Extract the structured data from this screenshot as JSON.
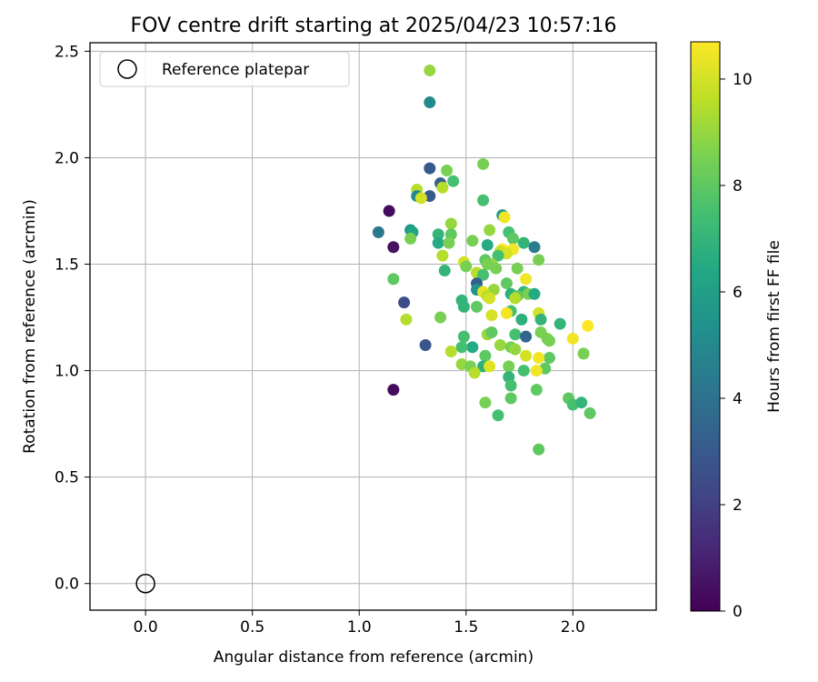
{
  "chart_data": {
    "type": "scatter",
    "title": "FOV centre drift starting at 2025/04/23 10:57:16",
    "xlabel": "Angular distance from reference (arcmin)",
    "ylabel": "Rotation from reference (arcmin)",
    "xlim": [
      -0.26,
      2.39
    ],
    "ylim": [
      -0.125,
      2.54
    ],
    "x_ticks": [
      0.0,
      0.5,
      1.0,
      1.5,
      2.0
    ],
    "x_tick_labels": [
      "0.0",
      "0.5",
      "1.0",
      "1.5",
      "2.0"
    ],
    "y_ticks": [
      0.0,
      0.5,
      1.0,
      1.5,
      2.0,
      2.5
    ],
    "y_tick_labels": [
      "0.0",
      "0.5",
      "1.0",
      "1.5",
      "2.0",
      "2.5"
    ],
    "grid": true,
    "legend": {
      "position": "top-left",
      "entries": [
        "Reference platepar"
      ]
    },
    "reference_point": {
      "x": 0.0,
      "y": 0.0,
      "label": "Reference platepar"
    },
    "colorbar": {
      "label": "Hours from first FF file",
      "colormap": "viridis",
      "range": [
        0,
        10.7
      ],
      "ticks": [
        0,
        2,
        4,
        6,
        8,
        10
      ],
      "tick_labels": [
        "0",
        "2",
        "4",
        "6",
        "8",
        "10"
      ]
    },
    "points": [
      {
        "x": 1.33,
        "y": 2.41,
        "h": 9.0
      },
      {
        "x": 1.33,
        "y": 2.26,
        "h": 5.0
      },
      {
        "x": 1.58,
        "y": 1.97,
        "h": 8.5
      },
      {
        "x": 1.33,
        "y": 1.95,
        "h": 3.0
      },
      {
        "x": 1.41,
        "y": 1.94,
        "h": 8.5
      },
      {
        "x": 1.44,
        "y": 1.89,
        "h": 7.5
      },
      {
        "x": 1.38,
        "y": 1.88,
        "h": 3.2
      },
      {
        "x": 1.39,
        "y": 1.86,
        "h": 9.5
      },
      {
        "x": 1.27,
        "y": 1.85,
        "h": 9.5
      },
      {
        "x": 1.33,
        "y": 1.82,
        "h": 3.0
      },
      {
        "x": 1.27,
        "y": 1.82,
        "h": 5.0
      },
      {
        "x": 1.29,
        "y": 1.81,
        "h": 10.0
      },
      {
        "x": 1.58,
        "y": 1.8,
        "h": 7.5
      },
      {
        "x": 1.14,
        "y": 1.75,
        "h": 0.3
      },
      {
        "x": 1.67,
        "y": 1.73,
        "h": 5.8
      },
      {
        "x": 1.68,
        "y": 1.72,
        "h": 10.5
      },
      {
        "x": 1.43,
        "y": 1.69,
        "h": 9.0
      },
      {
        "x": 1.61,
        "y": 1.66,
        "h": 9.0
      },
      {
        "x": 1.09,
        "y": 1.65,
        "h": 4.3
      },
      {
        "x": 1.24,
        "y": 1.66,
        "h": 5.5
      },
      {
        "x": 1.25,
        "y": 1.65,
        "h": 6.3
      },
      {
        "x": 1.7,
        "y": 1.65,
        "h": 7.5
      },
      {
        "x": 1.37,
        "y": 1.64,
        "h": 7.0
      },
      {
        "x": 1.43,
        "y": 1.64,
        "h": 8.0
      },
      {
        "x": 1.24,
        "y": 1.62,
        "h": 8.5
      },
      {
        "x": 1.53,
        "y": 1.61,
        "h": 8.5
      },
      {
        "x": 1.72,
        "y": 1.62,
        "h": 8.0
      },
      {
        "x": 1.37,
        "y": 1.6,
        "h": 6.5
      },
      {
        "x": 1.42,
        "y": 1.6,
        "h": 8.5
      },
      {
        "x": 1.6,
        "y": 1.59,
        "h": 6.5
      },
      {
        "x": 1.77,
        "y": 1.6,
        "h": 7.0
      },
      {
        "x": 1.16,
        "y": 1.58,
        "h": 0.5
      },
      {
        "x": 1.82,
        "y": 1.58,
        "h": 4.5
      },
      {
        "x": 1.67,
        "y": 1.57,
        "h": 10.7
      },
      {
        "x": 1.72,
        "y": 1.57,
        "h": 10.5
      },
      {
        "x": 1.66,
        "y": 1.56,
        "h": 9.8
      },
      {
        "x": 1.69,
        "y": 1.55,
        "h": 10.0
      },
      {
        "x": 1.39,
        "y": 1.54,
        "h": 9.5
      },
      {
        "x": 1.65,
        "y": 1.54,
        "h": 7.5
      },
      {
        "x": 1.59,
        "y": 1.52,
        "h": 8.0
      },
      {
        "x": 1.49,
        "y": 1.51,
        "h": 10.0
      },
      {
        "x": 1.62,
        "y": 1.5,
        "h": 9.0
      },
      {
        "x": 1.6,
        "y": 1.5,
        "h": 8.5
      },
      {
        "x": 1.5,
        "y": 1.49,
        "h": 8.5
      },
      {
        "x": 1.84,
        "y": 1.52,
        "h": 8.5
      },
      {
        "x": 1.64,
        "y": 1.48,
        "h": 8.5
      },
      {
        "x": 1.74,
        "y": 1.48,
        "h": 8.5
      },
      {
        "x": 1.4,
        "y": 1.47,
        "h": 7.0
      },
      {
        "x": 1.55,
        "y": 1.46,
        "h": 9.5
      },
      {
        "x": 1.58,
        "y": 1.45,
        "h": 7.5
      },
      {
        "x": 1.16,
        "y": 1.43,
        "h": 8.0
      },
      {
        "x": 1.78,
        "y": 1.43,
        "h": 10.5
      },
      {
        "x": 1.55,
        "y": 1.41,
        "h": 3.2
      },
      {
        "x": 1.69,
        "y": 1.41,
        "h": 8.0
      },
      {
        "x": 1.55,
        "y": 1.38,
        "h": 5.5
      },
      {
        "x": 1.63,
        "y": 1.38,
        "h": 9.0
      },
      {
        "x": 1.58,
        "y": 1.37,
        "h": 10.3
      },
      {
        "x": 1.71,
        "y": 1.36,
        "h": 6.8
      },
      {
        "x": 1.77,
        "y": 1.37,
        "h": 7.0
      },
      {
        "x": 1.79,
        "y": 1.36,
        "h": 8.5
      },
      {
        "x": 1.82,
        "y": 1.36,
        "h": 6.5
      },
      {
        "x": 1.6,
        "y": 1.35,
        "h": 9.5
      },
      {
        "x": 1.74,
        "y": 1.35,
        "h": 8.0
      },
      {
        "x": 1.61,
        "y": 1.34,
        "h": 10.0
      },
      {
        "x": 1.48,
        "y": 1.33,
        "h": 7.0
      },
      {
        "x": 1.73,
        "y": 1.34,
        "h": 9.5
      },
      {
        "x": 1.21,
        "y": 1.32,
        "h": 2.5
      },
      {
        "x": 1.55,
        "y": 1.3,
        "h": 8.0
      },
      {
        "x": 1.49,
        "y": 1.3,
        "h": 7.0
      },
      {
        "x": 1.71,
        "y": 1.28,
        "h": 7.5
      },
      {
        "x": 1.69,
        "y": 1.27,
        "h": 10.5
      },
      {
        "x": 1.84,
        "y": 1.27,
        "h": 10.0
      },
      {
        "x": 1.62,
        "y": 1.26,
        "h": 10.0
      },
      {
        "x": 1.38,
        "y": 1.25,
        "h": 8.5
      },
      {
        "x": 1.22,
        "y": 1.24,
        "h": 9.5
      },
      {
        "x": 1.76,
        "y": 1.24,
        "h": 6.8
      },
      {
        "x": 1.85,
        "y": 1.24,
        "h": 7.0
      },
      {
        "x": 1.94,
        "y": 1.22,
        "h": 7.0
      },
      {
        "x": 2.07,
        "y": 1.21,
        "h": 10.7
      },
      {
        "x": 1.6,
        "y": 1.17,
        "h": 9.0
      },
      {
        "x": 1.49,
        "y": 1.16,
        "h": 7.5
      },
      {
        "x": 1.62,
        "y": 1.18,
        "h": 8.0
      },
      {
        "x": 1.73,
        "y": 1.17,
        "h": 7.5
      },
      {
        "x": 1.85,
        "y": 1.18,
        "h": 8.5
      },
      {
        "x": 1.78,
        "y": 1.16,
        "h": 3.5
      },
      {
        "x": 1.88,
        "y": 1.15,
        "h": 8.5
      },
      {
        "x": 1.89,
        "y": 1.14,
        "h": 8.5
      },
      {
        "x": 2.0,
        "y": 1.15,
        "h": 10.5
      },
      {
        "x": 1.31,
        "y": 1.12,
        "h": 2.8
      },
      {
        "x": 1.53,
        "y": 1.11,
        "h": 6.5
      },
      {
        "x": 1.48,
        "y": 1.11,
        "h": 7.5
      },
      {
        "x": 1.66,
        "y": 1.12,
        "h": 9.0
      },
      {
        "x": 1.71,
        "y": 1.11,
        "h": 8.5
      },
      {
        "x": 1.73,
        "y": 1.1,
        "h": 9.0
      },
      {
        "x": 1.43,
        "y": 1.09,
        "h": 9.5
      },
      {
        "x": 1.59,
        "y": 1.07,
        "h": 8.0
      },
      {
        "x": 1.78,
        "y": 1.07,
        "h": 10.0
      },
      {
        "x": 1.89,
        "y": 1.06,
        "h": 8.0
      },
      {
        "x": 1.84,
        "y": 1.06,
        "h": 10.5
      },
      {
        "x": 2.05,
        "y": 1.08,
        "h": 8.5
      },
      {
        "x": 1.48,
        "y": 1.03,
        "h": 9.0
      },
      {
        "x": 1.52,
        "y": 1.02,
        "h": 8.5
      },
      {
        "x": 1.58,
        "y": 1.02,
        "h": 6.8
      },
      {
        "x": 1.61,
        "y": 1.02,
        "h": 10.2
      },
      {
        "x": 1.7,
        "y": 1.02,
        "h": 8.5
      },
      {
        "x": 1.87,
        "y": 1.01,
        "h": 8.0
      },
      {
        "x": 1.54,
        "y": 0.99,
        "h": 9.5
      },
      {
        "x": 1.77,
        "y": 1.0,
        "h": 7.5
      },
      {
        "x": 1.83,
        "y": 1.0,
        "h": 10.5
      },
      {
        "x": 1.7,
        "y": 0.97,
        "h": 7.0
      },
      {
        "x": 1.71,
        "y": 0.93,
        "h": 7.5
      },
      {
        "x": 1.16,
        "y": 0.91,
        "h": 0.3
      },
      {
        "x": 1.83,
        "y": 0.91,
        "h": 8.0
      },
      {
        "x": 1.71,
        "y": 0.87,
        "h": 8.0
      },
      {
        "x": 1.98,
        "y": 0.87,
        "h": 8.0
      },
      {
        "x": 1.59,
        "y": 0.85,
        "h": 8.5
      },
      {
        "x": 2.0,
        "y": 0.84,
        "h": 7.5
      },
      {
        "x": 2.04,
        "y": 0.85,
        "h": 7.0
      },
      {
        "x": 2.08,
        "y": 0.8,
        "h": 8.0
      },
      {
        "x": 1.65,
        "y": 0.79,
        "h": 7.5
      },
      {
        "x": 1.84,
        "y": 0.63,
        "h": 8.0
      }
    ]
  }
}
